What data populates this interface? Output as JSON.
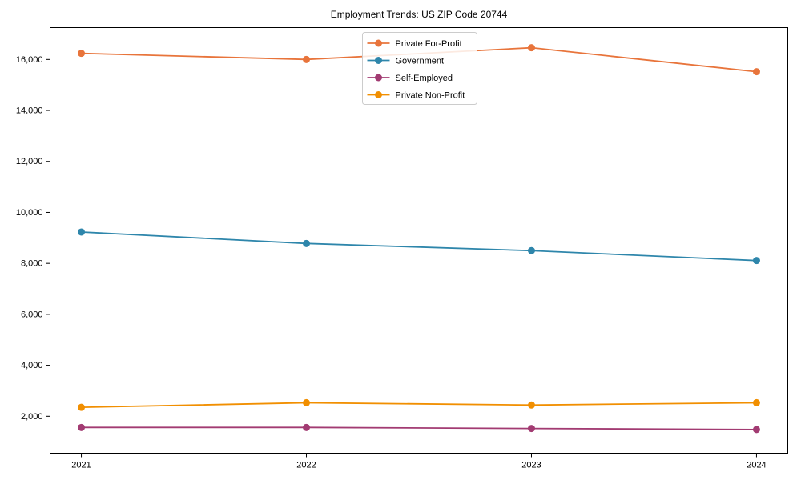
{
  "chart_data": {
    "type": "line",
    "title": "Employment Trends: US ZIP Code 20744",
    "x": [
      2021,
      2022,
      2023,
      2024
    ],
    "x_tick_labels": [
      "2021",
      "2022",
      "2023",
      "2024"
    ],
    "series": [
      {
        "name": "Private For-Profit",
        "color": "#e8743b",
        "values": [
          16240,
          16000,
          16460,
          15520
        ]
      },
      {
        "name": "Government",
        "color": "#2e86ab",
        "values": [
          9230,
          8780,
          8500,
          8110
        ]
      },
      {
        "name": "Self-Employed",
        "color": "#a23b72",
        "values": [
          1560,
          1560,
          1520,
          1480
        ]
      },
      {
        "name": "Private Non-Profit",
        "color": "#f18f01",
        "values": [
          2350,
          2530,
          2440,
          2530
        ]
      }
    ],
    "ylim": [
      550,
      17250
    ],
    "yticks": [
      2000,
      4000,
      6000,
      8000,
      10000,
      12000,
      14000,
      16000
    ],
    "ytick_labels": [
      "2,000",
      "4,000",
      "6,000",
      "8,000",
      "10,000",
      "12,000",
      "14,000",
      "16,000"
    ],
    "xlabel": "",
    "ylabel": "",
    "grid": false,
    "legend": {
      "position": "upper center",
      "entries": [
        "Private For-Profit",
        "Government",
        "Self-Employed",
        "Private Non-Profit"
      ]
    },
    "colors": {
      "background": "#ffffff",
      "axis": "#000000",
      "legend_border": "#cccccc"
    }
  }
}
